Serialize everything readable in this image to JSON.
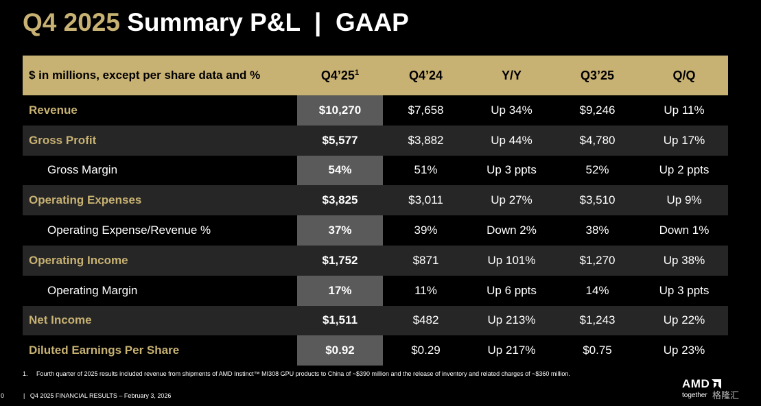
{
  "title": {
    "accent": "Q4 2025",
    "rest": " Summary P&L  |  GAAP"
  },
  "table": {
    "header": {
      "label": "$ in millions, except per share data and %",
      "q425": "Q4’25",
      "q425_sup": "1",
      "q424": "Q4’24",
      "yy": "Y/Y",
      "q325": "Q3’25",
      "qq": "Q/Q"
    },
    "rows": [
      {
        "label": "Revenue",
        "type": "main",
        "q425": "$10,270",
        "q424": "$7,658",
        "yy": "Up 34%",
        "q325": "$9,246",
        "qq": "Up 11%"
      },
      {
        "label": "Gross Profit",
        "type": "main",
        "q425": "$5,577",
        "q424": "$3,882",
        "yy": "Up 44%",
        "q325": "$4,780",
        "qq": "Up 17%"
      },
      {
        "label": "Gross Margin",
        "type": "sub",
        "q425": "54%",
        "q424": "51%",
        "yy": "Up 3 ppts",
        "q325": "52%",
        "qq": "Up 2 ppts"
      },
      {
        "label": "Operating Expenses",
        "type": "main",
        "q425": "$3,825",
        "q424": "$3,011",
        "yy": "Up 27%",
        "q325": "$3,510",
        "qq": "Up 9%"
      },
      {
        "label": "Operating Expense/Revenue %",
        "type": "sub",
        "q425": "37%",
        "q424": "39%",
        "yy": "Down 2%",
        "q325": "38%",
        "qq": "Down 1%"
      },
      {
        "label": "Operating Income",
        "type": "main",
        "q425": "$1,752",
        "q424": "$871",
        "yy": "Up 101%",
        "q325": "$1,270",
        "qq": "Up 38%"
      },
      {
        "label": "Operating Margin",
        "type": "sub",
        "q425": "17%",
        "q424": "11%",
        "yy": "Up 6 ppts",
        "q325": "14%",
        "qq": "Up 3 ppts"
      },
      {
        "label": "Net Income",
        "type": "main",
        "q425": "$1,511",
        "q424": "$482",
        "yy": "Up 213%",
        "q325": "$1,243",
        "qq": "Up 22%"
      },
      {
        "label": "Diluted Earnings Per Share",
        "type": "main",
        "q425": "$0.92",
        "q424": "$0.29",
        "yy": "Up 217%",
        "q325": "$0.75",
        "qq": "Up 23%"
      }
    ]
  },
  "footnote": {
    "num": "1.",
    "text": "Fourth quarter of 2025 results included revenue from shipments of AMD Instinct™ MI308 GPU products to China of ~$390 million and the release of inventory and related charges of ~$360 million."
  },
  "footer": {
    "page": "0",
    "text": "|   Q4 2025 FINANCIAL RESULTS – February 3, 2026"
  },
  "logo": {
    "brand": "AMD",
    "tagline": "together"
  },
  "watermark": "格隆汇",
  "colors": {
    "gold": "#c8b273",
    "highlight": "#5a5a5a",
    "shade": "#262626"
  }
}
